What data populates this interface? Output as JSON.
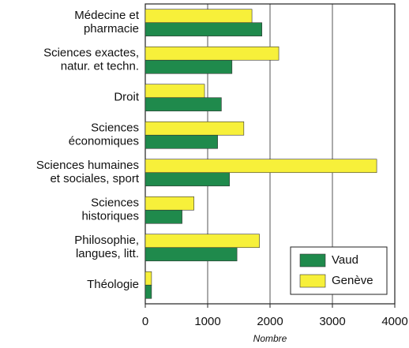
{
  "chart_data": {
    "type": "bar",
    "orientation": "horizontal",
    "categories": [
      [
        "Médecine et",
        "pharmacie"
      ],
      [
        "Sciences exactes,",
        "natur. et techn."
      ],
      [
        "Droit"
      ],
      [
        "Sciences",
        "économiques"
      ],
      [
        "Sciences humaines",
        "et sociales, sport"
      ],
      [
        "Sciences",
        "historiques"
      ],
      [
        "Philosophie,",
        "langues, litt."
      ],
      [
        "Théologie"
      ]
    ],
    "series": [
      {
        "name": "Genève",
        "color": "#f7f03a",
        "values": [
          1710,
          2140,
          950,
          1580,
          3710,
          780,
          1830,
          100
        ]
      },
      {
        "name": "Vaud",
        "color": "#1f8a4c",
        "values": [
          1870,
          1390,
          1220,
          1160,
          1350,
          590,
          1470,
          100
        ]
      }
    ],
    "legend_order": [
      1,
      0
    ],
    "xlabel": "Nombre",
    "xlim": [
      0,
      4000
    ],
    "xticks": [
      0,
      1000,
      2000,
      3000,
      4000
    ],
    "grid": true,
    "legend": "lower right"
  }
}
